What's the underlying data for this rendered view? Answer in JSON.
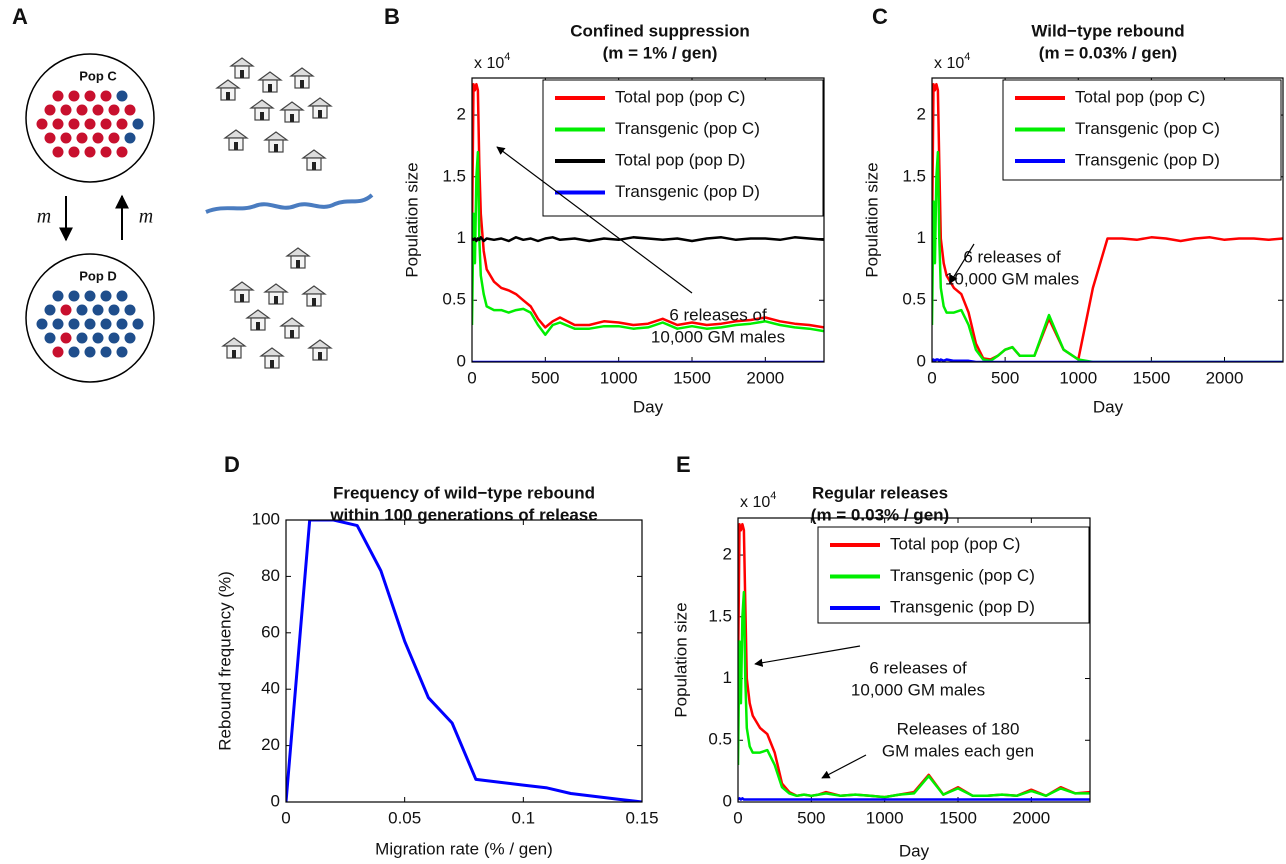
{
  "diagram": {
    "panel": "A",
    "populations": [
      "Pop C",
      "Pop D"
    ],
    "migration_labels": [
      "m",
      "m"
    ]
  },
  "chart_data": [
    {
      "type": "line",
      "panel": "B",
      "title": "Confined suppression",
      "subtitle": "(m = 1% / gen)",
      "x_label": "Day",
      "y_label": "Population size",
      "y_multiplier": {
        "base": "x 10",
        "exponent": "4"
      },
      "xlim": [
        0,
        2400
      ],
      "ylim": [
        0,
        2.3
      ],
      "xticks": [
        0,
        500,
        1000,
        1500,
        2000
      ],
      "yticks": [
        0,
        0.5,
        1,
        1.5,
        2
      ],
      "legend": "upper right",
      "x": [
        0,
        10,
        20,
        30,
        40,
        50,
        60,
        80,
        100,
        150,
        200,
        250,
        300,
        350,
        400,
        450,
        500,
        550,
        600,
        700,
        800,
        900,
        1000,
        1100,
        1200,
        1300,
        1400,
        1500,
        1600,
        1700,
        1800,
        1900,
        2000,
        2100,
        2200,
        2300,
        2400
      ],
      "series": [
        {
          "name": "Total pop (pop C)",
          "color": "#ff0000",
          "values": [
            1.0,
            2.25,
            2.2,
            2.25,
            2.2,
            1.6,
            1.2,
            0.9,
            0.75,
            0.65,
            0.6,
            0.58,
            0.55,
            0.5,
            0.45,
            0.35,
            0.28,
            0.33,
            0.36,
            0.3,
            0.3,
            0.33,
            0.32,
            0.3,
            0.31,
            0.35,
            0.3,
            0.32,
            0.3,
            0.31,
            0.33,
            0.34,
            0.36,
            0.33,
            0.31,
            0.3,
            0.28
          ]
        },
        {
          "name": "Transgenic (pop C)",
          "color": "#00ee00",
          "values": [
            0.3,
            1.2,
            0.8,
            1.5,
            1.7,
            1.0,
            0.7,
            0.55,
            0.45,
            0.42,
            0.42,
            0.4,
            0.42,
            0.43,
            0.4,
            0.3,
            0.22,
            0.3,
            0.32,
            0.27,
            0.27,
            0.29,
            0.29,
            0.27,
            0.28,
            0.32,
            0.27,
            0.29,
            0.27,
            0.28,
            0.3,
            0.31,
            0.33,
            0.3,
            0.28,
            0.27,
            0.25
          ]
        },
        {
          "name": "Total pop (pop D)",
          "color": "#000000",
          "values": [
            1.0,
            0.99,
            1.0,
            0.98,
            1.0,
            0.99,
            1.01,
            0.98,
            1.0,
            0.99,
            1.0,
            0.98,
            1.01,
            0.99,
            1.0,
            0.98,
            1.0,
            1.01,
            0.99,
            1.0,
            0.98,
            1.0,
            0.99,
            1.01,
            1.0,
            0.99,
            1.0,
            0.98,
            1.0,
            1.01,
            0.99,
            1.0,
            1.0,
            0.99,
            1.01,
            1.0,
            0.99
          ]
        },
        {
          "name": "Transgenic (pop D)",
          "color": "#0000ff",
          "values": [
            0,
            0,
            0,
            0,
            0,
            0,
            0,
            0,
            0,
            0,
            0,
            0,
            0,
            0,
            0,
            0,
            0,
            0,
            0,
            0,
            0,
            0,
            0,
            0,
            0,
            0,
            0,
            0,
            0,
            0,
            0,
            0,
            0,
            0,
            0,
            0,
            0
          ]
        }
      ],
      "annotations": [
        [
          "6 releases of",
          "10,000 GM males"
        ]
      ]
    },
    {
      "type": "line",
      "panel": "C",
      "title": "Wild−type rebound",
      "subtitle": "(m = 0.03% / gen)",
      "x_label": "Day",
      "y_label": "Population size",
      "y_multiplier": {
        "base": "x 10",
        "exponent": "4"
      },
      "xlim": [
        0,
        2400
      ],
      "ylim": [
        0,
        2.3
      ],
      "xticks": [
        0,
        500,
        1000,
        1500,
        2000
      ],
      "yticks": [
        0,
        0.5,
        1,
        1.5,
        2
      ],
      "legend": "upper right",
      "x": [
        0,
        10,
        20,
        30,
        40,
        50,
        60,
        80,
        100,
        150,
        200,
        250,
        300,
        350,
        400,
        450,
        500,
        550,
        600,
        700,
        800,
        900,
        1000,
        1100,
        1200,
        1300,
        1400,
        1500,
        1600,
        1700,
        1800,
        1900,
        2000,
        2100,
        2200,
        2300,
        2400
      ],
      "series": [
        {
          "name": "Total pop (pop C)",
          "color": "#ff0000",
          "values": [
            1.0,
            2.25,
            2.2,
            2.25,
            2.2,
            1.6,
            1.0,
            0.8,
            0.7,
            0.6,
            0.55,
            0.4,
            0.15,
            0.03,
            0.02,
            0.05,
            0.1,
            0.12,
            0.05,
            0.05,
            0.35,
            0.1,
            0.02,
            0.6,
            1.0,
            1.0,
            0.99,
            1.01,
            1.0,
            0.98,
            1.0,
            1.01,
            0.99,
            1.0,
            1.0,
            0.99,
            1.0
          ]
        },
        {
          "name": "Transgenic (pop C)",
          "color": "#00ee00",
          "values": [
            0.3,
            1.3,
            0.8,
            1.5,
            1.7,
            1.0,
            0.6,
            0.45,
            0.4,
            0.4,
            0.42,
            0.3,
            0.1,
            0.02,
            0.01,
            0.05,
            0.1,
            0.12,
            0.05,
            0.05,
            0.38,
            0.1,
            0.02,
            0,
            0,
            0,
            0,
            0,
            0,
            0,
            0,
            0,
            0,
            0,
            0,
            0,
            0
          ]
        },
        {
          "name": "Transgenic (pop D)",
          "color": "#0000ff",
          "values": [
            0.01,
            0.02,
            0.01,
            0.02,
            0.02,
            0.01,
            0.02,
            0.01,
            0.02,
            0.01,
            0.01,
            0.01,
            0,
            0,
            0,
            0,
            0,
            0,
            0,
            0,
            0,
            0,
            0,
            0,
            0,
            0,
            0,
            0,
            0,
            0,
            0,
            0,
            0,
            0,
            0,
            0,
            0
          ]
        }
      ],
      "annotations": [
        [
          "6 releases of",
          "10,000 GM males"
        ]
      ]
    },
    {
      "type": "line",
      "panel": "D",
      "title": "Frequency of wild−type rebound",
      "subtitle": "within 100 generations of release",
      "x_label": "Migration rate (% / gen)",
      "y_label": "Rebound frequency (%)",
      "xlim": [
        0,
        0.15
      ],
      "ylim": [
        0,
        100
      ],
      "xticks": [
        0,
        0.05,
        0.1,
        0.15
      ],
      "yticks": [
        0,
        20,
        40,
        60,
        80,
        100
      ],
      "x": [
        0,
        0.01,
        0.02,
        0.03,
        0.04,
        0.05,
        0.06,
        0.07,
        0.08,
        0.09,
        0.1,
        0.11,
        0.12,
        0.13,
        0.14,
        0.15
      ],
      "series": [
        {
          "color": "#0000ff",
          "values": [
            0,
            100,
            100,
            98,
            82,
            57,
            37,
            28,
            8,
            7,
            6,
            5,
            3,
            2,
            1,
            0
          ]
        }
      ]
    },
    {
      "type": "line",
      "panel": "E",
      "title": "Regular releases",
      "subtitle": "(m = 0.03% / gen)",
      "x_label": "Day",
      "y_label": "Population size",
      "y_multiplier": {
        "base": "x 10",
        "exponent": "4"
      },
      "xlim": [
        0,
        2400
      ],
      "ylim": [
        0,
        2.3
      ],
      "xticks": [
        0,
        500,
        1000,
        1500,
        2000
      ],
      "yticks": [
        0,
        0.5,
        1,
        1.5,
        2
      ],
      "legend": "upper right",
      "x": [
        0,
        10,
        20,
        30,
        40,
        50,
        60,
        80,
        100,
        150,
        200,
        250,
        300,
        350,
        400,
        450,
        500,
        550,
        600,
        700,
        800,
        900,
        1000,
        1100,
        1200,
        1300,
        1400,
        1500,
        1600,
        1700,
        1800,
        1900,
        2000,
        2100,
        2200,
        2300,
        2400
      ],
      "series": [
        {
          "name": "Total pop (pop C)",
          "color": "#ff0000",
          "values": [
            1.0,
            2.25,
            2.2,
            2.25,
            2.2,
            1.6,
            1.0,
            0.8,
            0.7,
            0.6,
            0.55,
            0.4,
            0.15,
            0.08,
            0.05,
            0.06,
            0.05,
            0.06,
            0.08,
            0.05,
            0.06,
            0.05,
            0.04,
            0.06,
            0.08,
            0.22,
            0.06,
            0.12,
            0.05,
            0.05,
            0.06,
            0.05,
            0.1,
            0.05,
            0.12,
            0.07,
            0.08
          ]
        },
        {
          "name": "Transgenic (pop C)",
          "color": "#00ee00",
          "values": [
            0.3,
            1.3,
            0.8,
            1.5,
            1.7,
            1.0,
            0.6,
            0.45,
            0.4,
            0.4,
            0.42,
            0.3,
            0.12,
            0.07,
            0.05,
            0.06,
            0.05,
            0.06,
            0.07,
            0.05,
            0.06,
            0.05,
            0.04,
            0.06,
            0.07,
            0.21,
            0.06,
            0.11,
            0.05,
            0.05,
            0.06,
            0.05,
            0.09,
            0.05,
            0.11,
            0.07,
            0.07
          ]
        },
        {
          "name": "Transgenic (pop D)",
          "color": "#0000ff",
          "values": [
            0.02,
            0.03,
            0.02,
            0.03,
            0.02,
            0.02,
            0.02,
            0.02,
            0.02,
            0.02,
            0.02,
            0.02,
            0.02,
            0.02,
            0.02,
            0.02,
            0.02,
            0.02,
            0.02,
            0.02,
            0.02,
            0.02,
            0.02,
            0.02,
            0.02,
            0.02,
            0.02,
            0.02,
            0.02,
            0.02,
            0.02,
            0.02,
            0.02,
            0.02,
            0.02,
            0.02,
            0.02
          ]
        }
      ],
      "annotations": [
        [
          "6 releases of",
          "10,000 GM males"
        ],
        [
          "Releases of 180",
          "GM males each gen"
        ]
      ]
    }
  ]
}
